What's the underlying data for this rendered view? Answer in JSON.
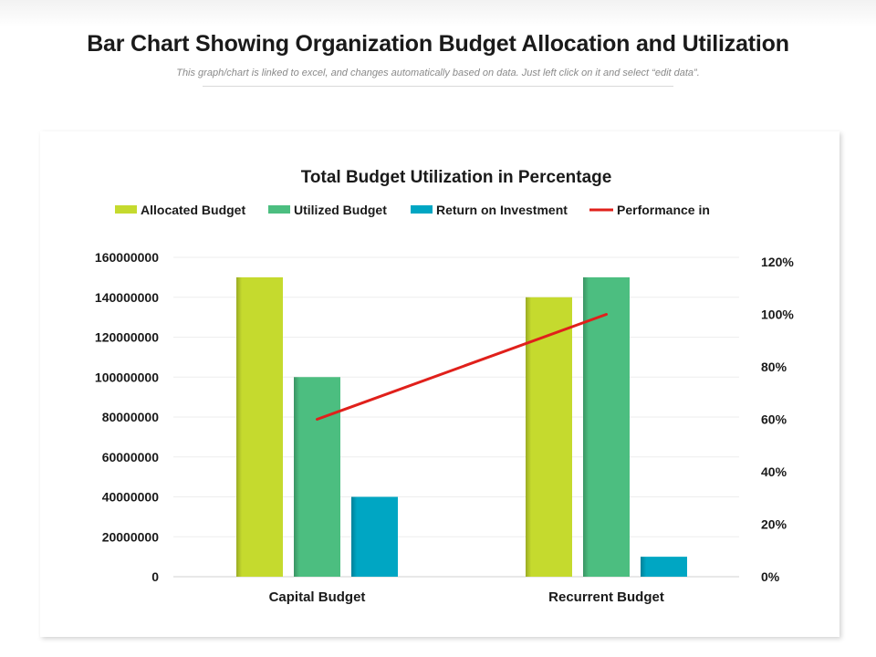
{
  "slide": {
    "title": "Bar Chart Showing Organization Budget Allocation and Utilization",
    "subtitle": "This graph/chart is linked to excel, and changes automatically based on data. Just left click on it and select “edit data”."
  },
  "chart_data": {
    "type": "bar",
    "title": "Total Budget Utilization in Percentage",
    "categories": [
      "Capital Budget",
      "Recurrent Budget"
    ],
    "series": [
      {
        "name": "Allocated Budget",
        "kind": "bar",
        "axis": "left",
        "color": "#c5da2e",
        "values": [
          150000000,
          140000000
        ]
      },
      {
        "name": "Utilized Budget",
        "kind": "bar",
        "axis": "left",
        "color": "#4cbe80",
        "values": [
          100000000,
          150000000
        ]
      },
      {
        "name": "Return on Investment",
        "kind": "bar",
        "axis": "left",
        "color": "#00a6c3",
        "values": [
          40000000,
          10000000
        ]
      },
      {
        "name": "Performance in",
        "kind": "line",
        "axis": "right",
        "color": "#e0201b",
        "values": [
          0.6,
          1.0
        ]
      }
    ],
    "y_left": {
      "min": 0,
      "max": 160000000,
      "ticks": [
        0,
        20000000,
        40000000,
        60000000,
        80000000,
        100000000,
        120000000,
        140000000,
        160000000
      ],
      "tick_labels": [
        "0",
        "20000000",
        "40000000",
        "60000000",
        "80000000",
        "100000000",
        "120000000",
        "140000000",
        "160000000"
      ]
    },
    "y_right": {
      "min": 0,
      "max": 1.2,
      "ticks": [
        0,
        0.2,
        0.4,
        0.6,
        0.8,
        1.0,
        1.2
      ],
      "tick_labels": [
        "0%",
        "20%",
        "40%",
        "60%",
        "80%",
        "100%",
        "120%"
      ]
    },
    "grid": true,
    "legend": "top"
  }
}
